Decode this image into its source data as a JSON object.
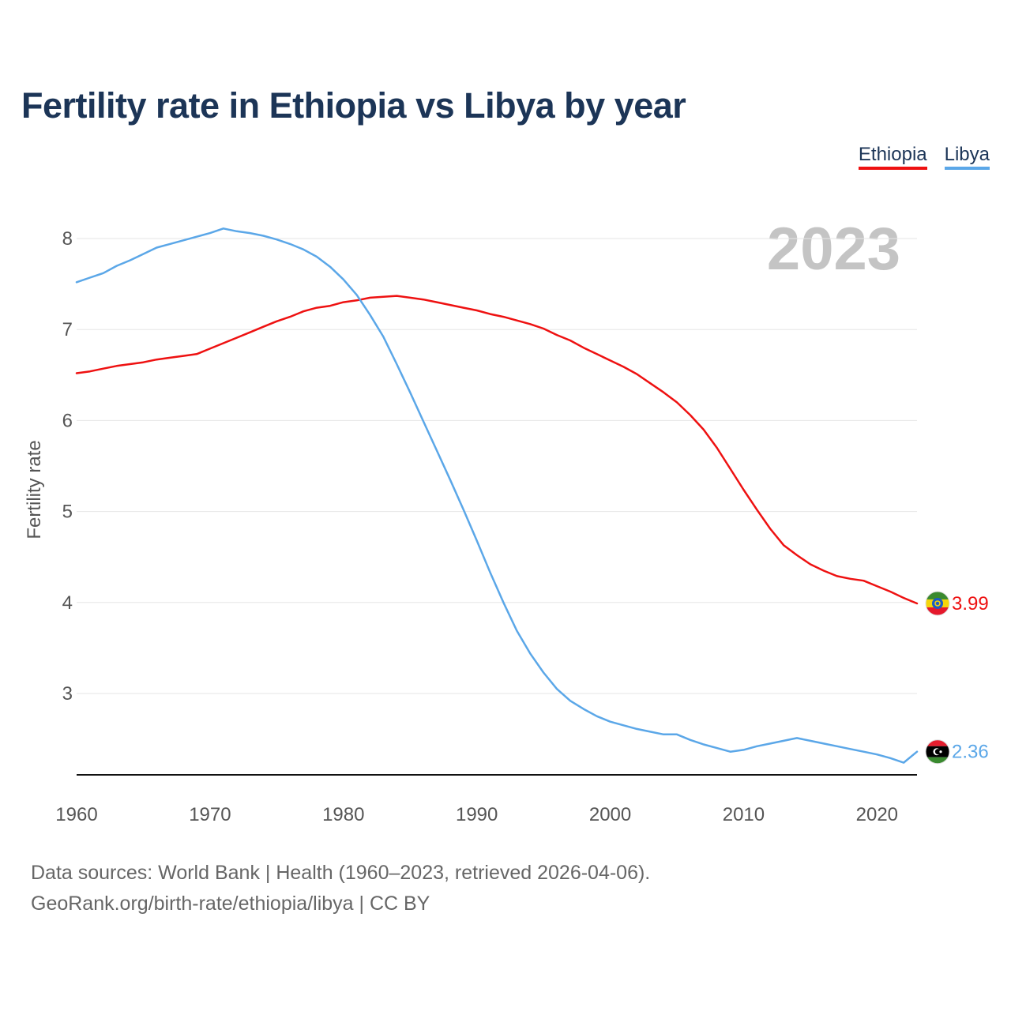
{
  "chart_data": {
    "type": "line",
    "title": "Fertility rate in Ethiopia vs Libya by year",
    "xlabel": "",
    "ylabel": "Fertility rate",
    "xlim": [
      1960,
      2023
    ],
    "ylim": [
      2.1,
      8.4
    ],
    "x_ticks": [
      1960,
      1970,
      1980,
      1990,
      2000,
      2010,
      2020
    ],
    "y_ticks": [
      3,
      4,
      5,
      6,
      7,
      8
    ],
    "year_watermark": "2023",
    "x": [
      1960,
      1961,
      1962,
      1963,
      1964,
      1965,
      1966,
      1967,
      1968,
      1969,
      1970,
      1971,
      1972,
      1973,
      1974,
      1975,
      1976,
      1977,
      1978,
      1979,
      1980,
      1981,
      1982,
      1983,
      1984,
      1985,
      1986,
      1987,
      1988,
      1989,
      1990,
      1991,
      1992,
      1993,
      1994,
      1995,
      1996,
      1997,
      1998,
      1999,
      2000,
      2001,
      2002,
      2003,
      2004,
      2005,
      2006,
      2007,
      2008,
      2009,
      2010,
      2011,
      2012,
      2013,
      2014,
      2015,
      2016,
      2017,
      2018,
      2019,
      2020,
      2021,
      2022,
      2023
    ],
    "series": [
      {
        "name": "Ethiopia",
        "color": "#ee1111",
        "end_label": "3.99",
        "flag": "ethiopia-flag-icon",
        "values": [
          6.52,
          6.54,
          6.57,
          6.6,
          6.62,
          6.64,
          6.67,
          6.69,
          6.71,
          6.73,
          6.79,
          6.85,
          6.91,
          6.97,
          7.03,
          7.09,
          7.14,
          7.2,
          7.24,
          7.26,
          7.3,
          7.32,
          7.35,
          7.36,
          7.37,
          7.35,
          7.33,
          7.3,
          7.27,
          7.24,
          7.21,
          7.17,
          7.14,
          7.1,
          7.06,
          7.01,
          6.94,
          6.88,
          6.8,
          6.73,
          6.66,
          6.59,
          6.51,
          6.41,
          6.31,
          6.2,
          6.06,
          5.9,
          5.7,
          5.47,
          5.24,
          5.02,
          4.81,
          4.63,
          4.52,
          4.42,
          4.35,
          4.29,
          4.26,
          4.24,
          4.18,
          4.12,
          4.05,
          3.99
        ]
      },
      {
        "name": "Libya",
        "color": "#5ba7e8",
        "end_label": "2.36",
        "flag": "libya-flag-icon",
        "values": [
          7.52,
          7.57,
          7.62,
          7.7,
          7.76,
          7.83,
          7.9,
          7.94,
          7.98,
          8.02,
          8.06,
          8.11,
          8.08,
          8.06,
          8.03,
          7.99,
          7.94,
          7.88,
          7.8,
          7.69,
          7.55,
          7.38,
          7.16,
          6.92,
          6.62,
          6.31,
          5.99,
          5.67,
          5.35,
          5.02,
          4.68,
          4.33,
          4.0,
          3.69,
          3.44,
          3.23,
          3.05,
          2.92,
          2.83,
          2.75,
          2.69,
          2.65,
          2.61,
          2.58,
          2.55,
          2.55,
          2.49,
          2.44,
          2.4,
          2.36,
          2.38,
          2.42,
          2.45,
          2.48,
          2.51,
          2.48,
          2.45,
          2.42,
          2.39,
          2.36,
          2.33,
          2.29,
          2.24,
          2.36
        ]
      }
    ]
  },
  "legend": {
    "ethiopia": "Ethiopia",
    "libya": "Libya"
  },
  "footer": {
    "sources": "Data sources: World Bank | Health (1960–2023, retrieved 2026-04-06).",
    "credit": "GeoRank.org/birth-rate/ethiopia/libya | CC BY"
  }
}
